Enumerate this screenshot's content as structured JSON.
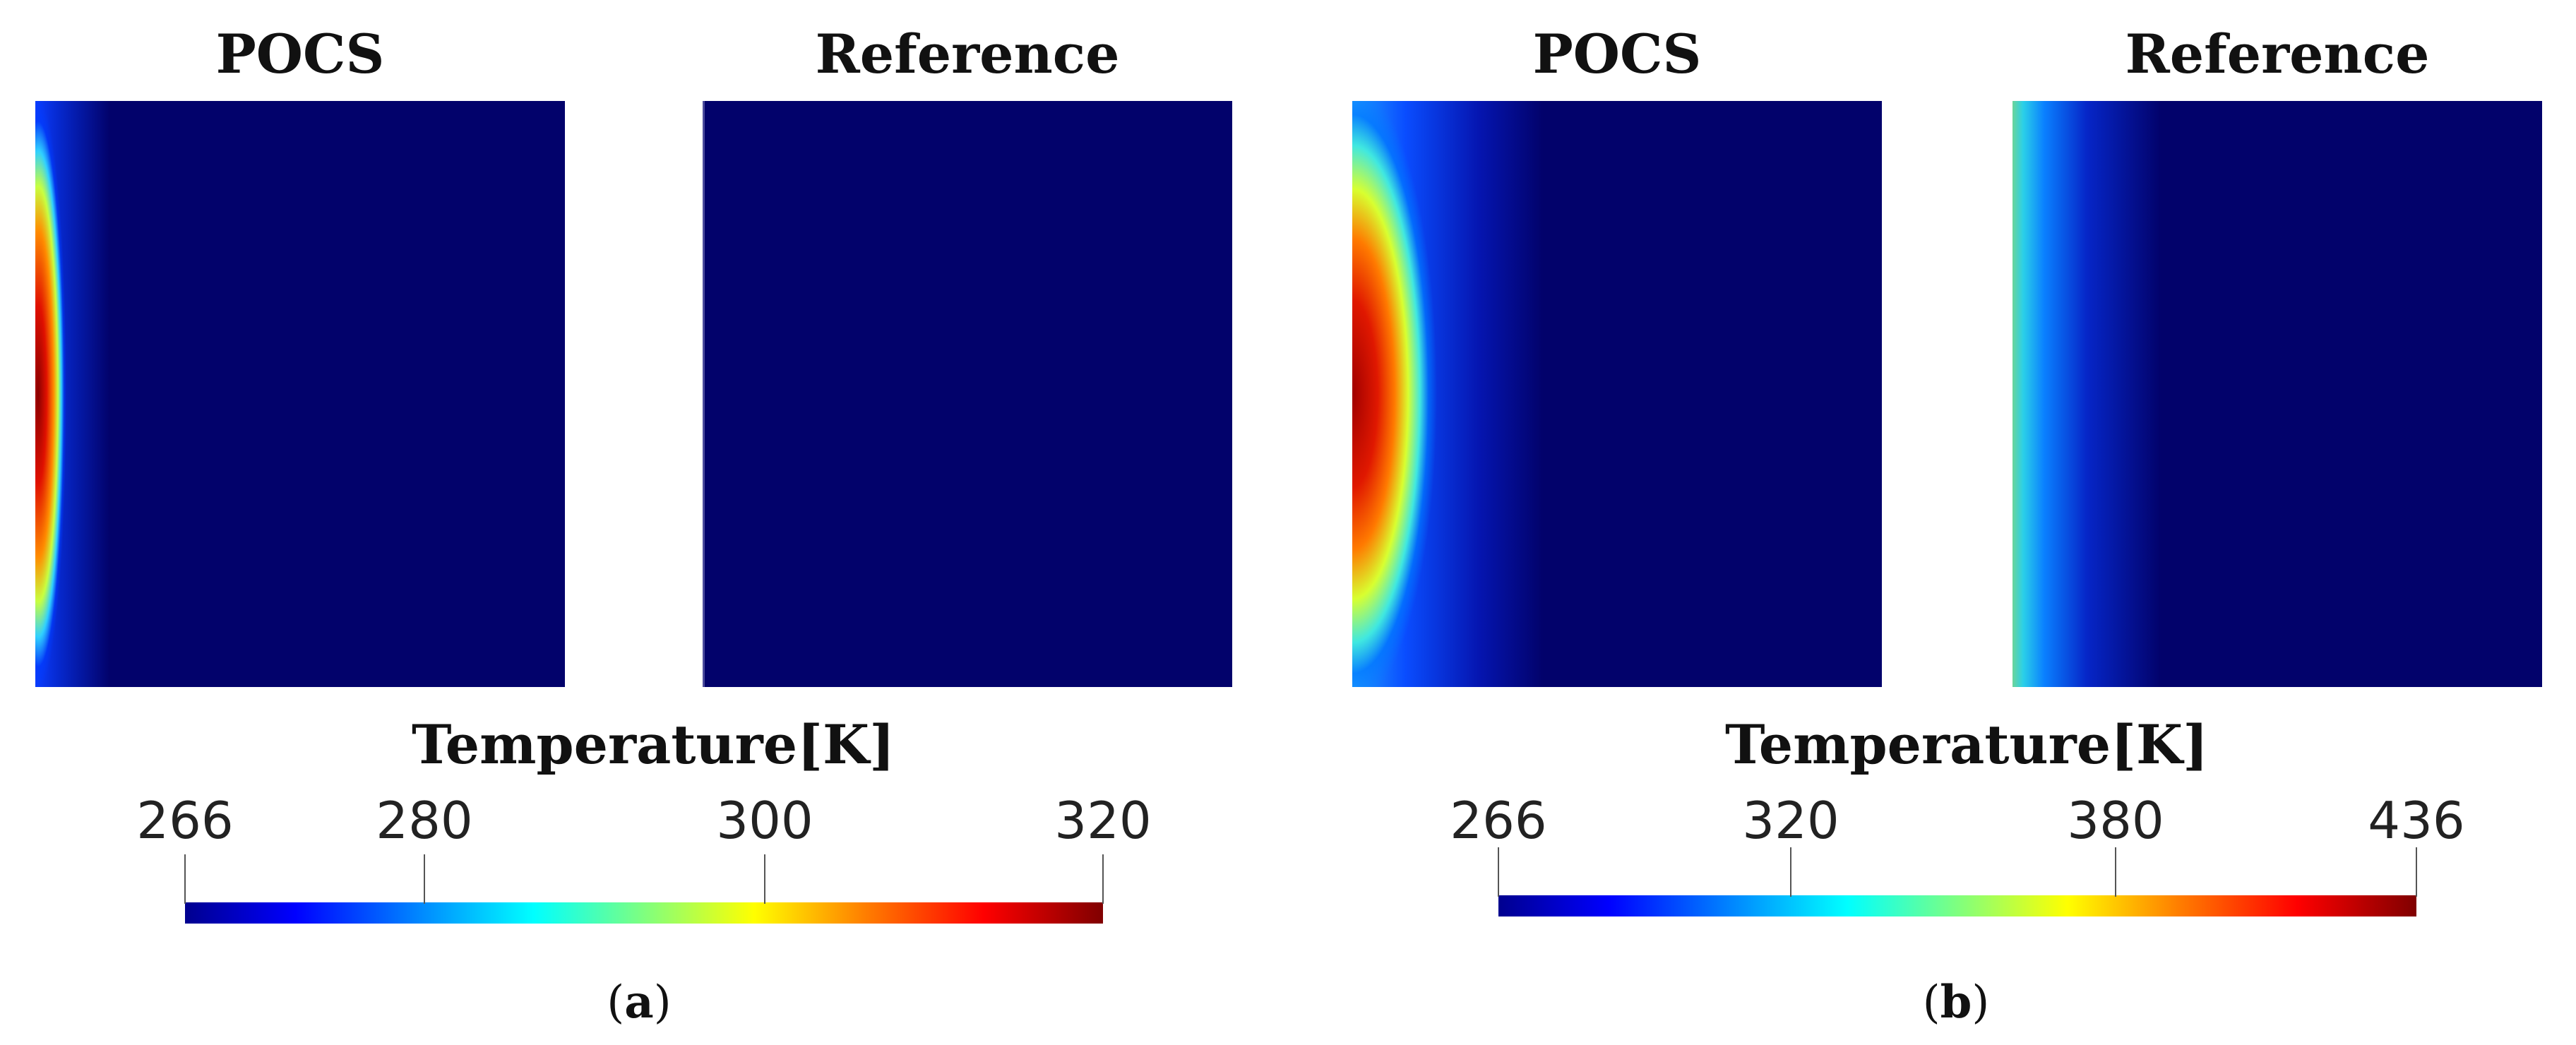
{
  "panels": [
    {
      "id": "a",
      "label": "a",
      "pocs_title": "POCS",
      "reference_title": "Reference",
      "colorbar": {
        "title": "Temperature[K]",
        "min": 266,
        "max": 320,
        "ticks": [
          "266",
          "280",
          "300",
          "320"
        ],
        "tick_values": [
          266,
          280,
          300,
          320
        ]
      }
    },
    {
      "id": "b",
      "label": "b",
      "pocs_title": "POCS",
      "reference_title": "Reference",
      "colorbar": {
        "title": "Temperature[K]",
        "min": 266,
        "max": 436,
        "ticks": [
          "266",
          "320",
          "380",
          "436"
        ],
        "tick_values": [
          266,
          320,
          380,
          436
        ]
      }
    }
  ],
  "colors": {
    "field_background": "#02026b",
    "colormap": [
      "#00008f",
      "#0000ff",
      "#00a0ff",
      "#00ffff",
      "#7fff7f",
      "#ffff00",
      "#ff7f00",
      "#ff0000",
      "#800000"
    ]
  }
}
